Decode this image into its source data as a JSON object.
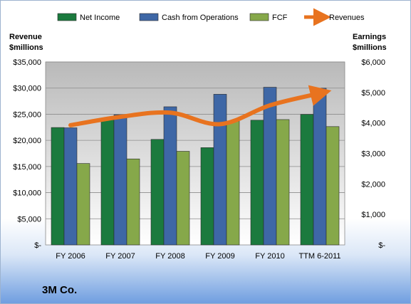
{
  "chart_data": {
    "type": "bar",
    "title": "3M Co.",
    "categories": [
      "FY 2006",
      "FY 2007",
      "FY 2008",
      "FY 2009",
      "FY 2010",
      "TTM 6-2011"
    ],
    "series": [
      {
        "name": "Net Income",
        "axis": "right",
        "kind": "bar",
        "color": "#1b7a3e",
        "values": [
          3850,
          4100,
          3460,
          3190,
          4090,
          4280
        ]
      },
      {
        "name": "Cash from Operations",
        "axis": "right",
        "kind": "bar",
        "color": "#3e67a6",
        "values": [
          3840,
          4270,
          4530,
          4940,
          5170,
          5140
        ]
      },
      {
        "name": "FCF",
        "axis": "right",
        "kind": "bar",
        "color": "#86a84a",
        "values": [
          2670,
          2820,
          3070,
          4060,
          4110,
          3880
        ]
      },
      {
        "name": "Revenues",
        "axis": "left",
        "kind": "line",
        "color": "#e8731f",
        "values": [
          22900,
          24500,
          25300,
          23100,
          26700,
          29000
        ]
      }
    ],
    "left_axis": {
      "label": "Revenue $millions",
      "label_lines": [
        "Revenue",
        "$millions"
      ],
      "ylim": [
        0,
        35000
      ],
      "ticks": [
        "$-",
        "$5,000",
        "$10,000",
        "$15,000",
        "$20,000",
        "$25,000",
        "$30,000",
        "$35,000"
      ]
    },
    "right_axis": {
      "label": "Earnings $millions",
      "label_lines": [
        "Earnings",
        "$millions"
      ],
      "ylim": [
        0,
        6000
      ],
      "ticks": [
        "$-",
        "$1,000",
        "$2,000",
        "$3,000",
        "$4,000",
        "$5,000",
        "$6,000"
      ]
    },
    "legend_position": "top",
    "grid": true
  }
}
